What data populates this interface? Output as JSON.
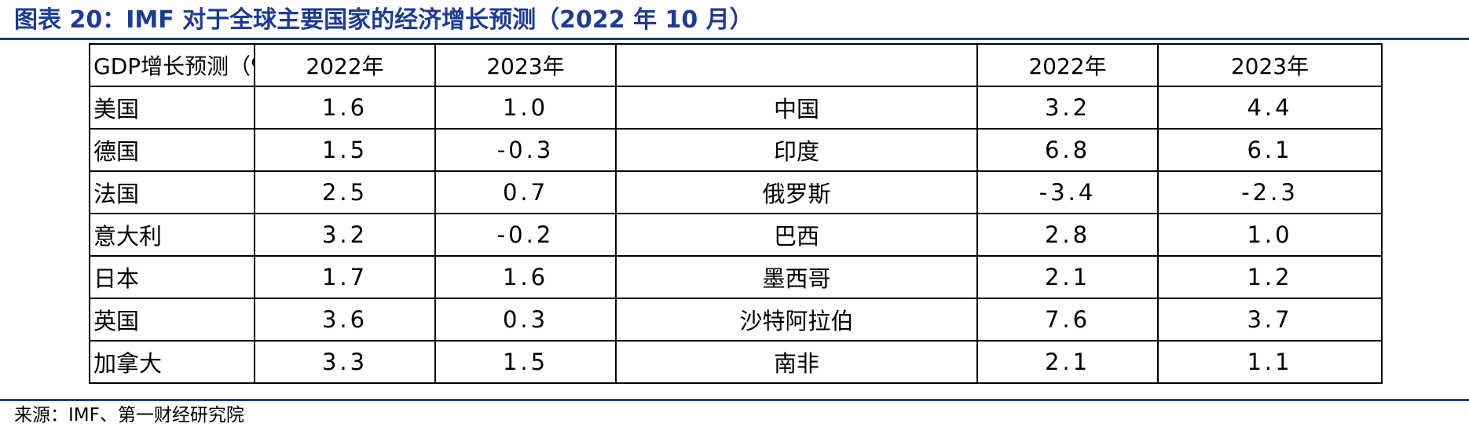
{
  "title": "图表 20：IMF 对于全球主要国家的经济增长预测（2022 年 10 月）",
  "table": {
    "header": [
      "GDP增长预测（%）",
      "2022年",
      "2023年",
      "",
      "2022年",
      "2023年"
    ],
    "rows": [
      [
        "美国",
        "1.6",
        "1.0",
        "中国",
        "3.2",
        "4.4"
      ],
      [
        "德国",
        "1.5",
        "-0.3",
        "印度",
        "6.8",
        "6.1"
      ],
      [
        "法国",
        "2.5",
        "0.7",
        "俄罗斯",
        "-3.4",
        "-2.3"
      ],
      [
        "意大利",
        "3.2",
        "-0.2",
        "巴西",
        "2.8",
        "1.0"
      ],
      [
        "日本",
        "1.7",
        "1.6",
        "墨西哥",
        "2.1",
        "1.2"
      ],
      [
        "英国",
        "3.6",
        "0.3",
        "沙特阿拉伯",
        "7.6",
        "3.7"
      ],
      [
        "加拿大",
        "3.3",
        "1.5",
        "南非",
        "2.1",
        "1.1"
      ]
    ]
  },
  "source": "来源：IMF、第一财经研究院"
}
